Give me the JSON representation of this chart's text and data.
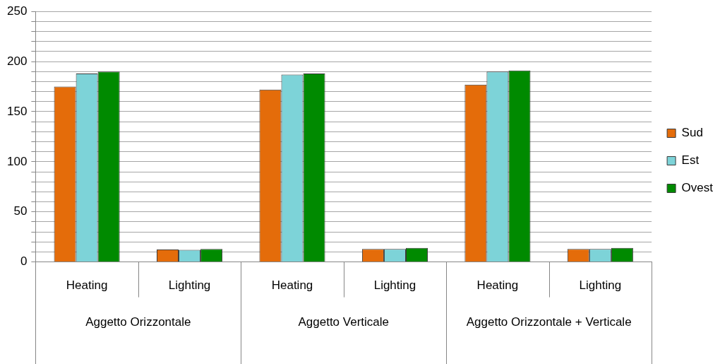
{
  "chart_data": {
    "type": "bar",
    "categories": [
      "Heating",
      "Lighting",
      "Heating",
      "Lighting",
      "Heating",
      "Lighting"
    ],
    "annotations": [
      "Aggetto Orizzontale",
      "Aggetto Verticale",
      "Aggetto Orizzontale + Verticale"
    ],
    "series": [
      {
        "name": "Sud",
        "color": "#e46c0a",
        "values": [
          175,
          12.5,
          172,
          13,
          177,
          13
        ]
      },
      {
        "name": "Est",
        "color": "#7dd3d8",
        "values": [
          188,
          12,
          187,
          13,
          190,
          13
        ]
      },
      {
        "name": "Ovest",
        "color": "#008a00",
        "values": [
          190,
          13,
          188,
          14,
          191,
          14
        ]
      }
    ],
    "ylim": [
      0,
      250
    ],
    "yticks": [
      0,
      {
        "value": 10,
        "label": null
      },
      {
        "value": 20,
        "label": null
      },
      {
        "value": 30,
        "label": null
      },
      {
        "value": 40,
        "label": null
      },
      50,
      {
        "value": 60,
        "label": null
      },
      {
        "value": 70,
        "label": null
      },
      {
        "value": 80,
        "label": null
      },
      {
        "value": 90,
        "label": null
      },
      100,
      {
        "value": 110,
        "label": null
      },
      {
        "value": 120,
        "label": null
      },
      {
        "value": 130,
        "label": null
      },
      {
        "value": 140,
        "label": null
      },
      150,
      {
        "value": 160,
        "label": null
      },
      {
        "value": 170,
        "label": null
      },
      {
        "value": 180,
        "label": null
      },
      {
        "value": 190,
        "label": null
      },
      200,
      {
        "value": 210,
        "label": null
      },
      {
        "value": 220,
        "label": null
      },
      {
        "value": 230,
        "label": null
      },
      {
        "value": 240,
        "label": null
      },
      250
    ],
    "grid": "y",
    "legend": "right"
  }
}
